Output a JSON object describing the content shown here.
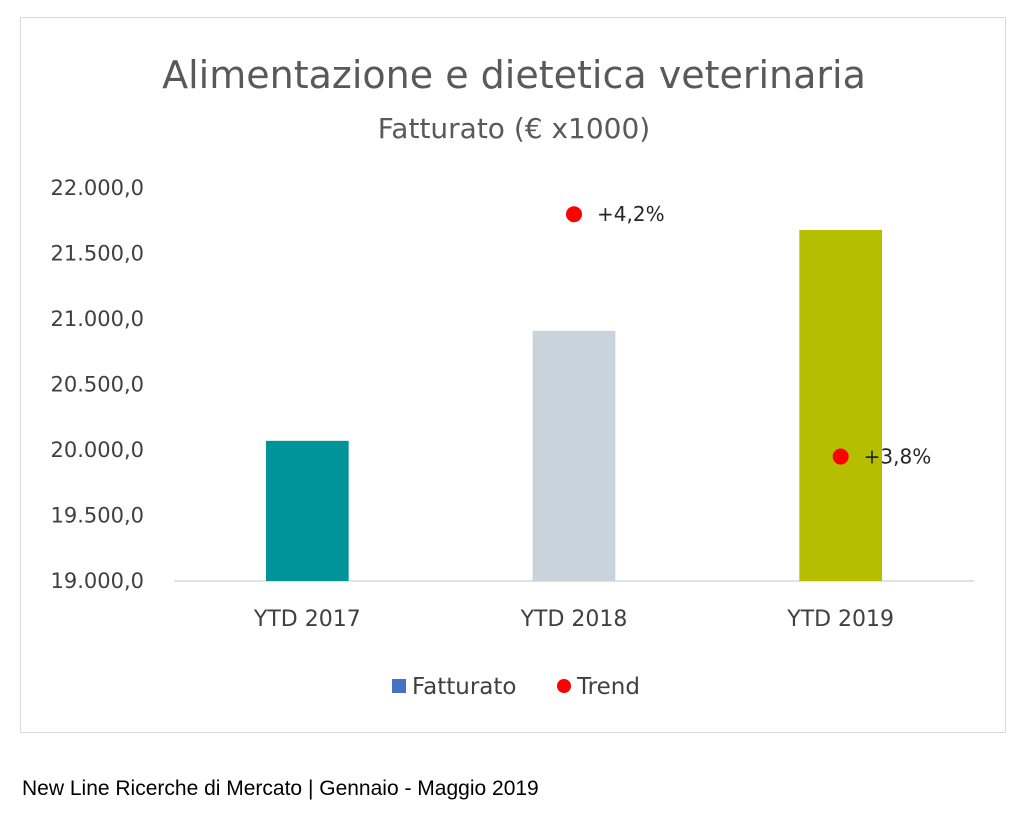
{
  "chart_data": {
    "type": "bar",
    "title": "Alimentazione e dietetica veterinaria",
    "subtitle": "Fatturato (€ x1000)",
    "categories": [
      "YTD 2017",
      "YTD 2018",
      "YTD 2019"
    ],
    "series": [
      {
        "name": "Fatturato",
        "values": [
          20070,
          20910,
          21680
        ],
        "colors": [
          "#009499",
          "#c8d3dc",
          "#b5bf00"
        ]
      },
      {
        "name": "Trend",
        "type": "scatter",
        "color": "#ff0000",
        "values": [
          null,
          21800,
          19950
        ],
        "labels": [
          "",
          "+4,2%",
          "+3,8%"
        ]
      }
    ],
    "ylim": [
      19000,
      22000
    ],
    "yticks": [
      "19.000,0",
      "19.500,0",
      "20.000,0",
      "20.500,0",
      "21.000,0",
      "21.500,0",
      "22.000,0"
    ],
    "ytick_values": [
      19000,
      19500,
      20000,
      20500,
      21000,
      21500,
      22000
    ],
    "grid": false,
    "legend_position": "bottom",
    "legend_swatch_color": "#4472c4"
  },
  "caption": "New Line Ricerche di Mercato | Gennaio - Maggio 2019"
}
